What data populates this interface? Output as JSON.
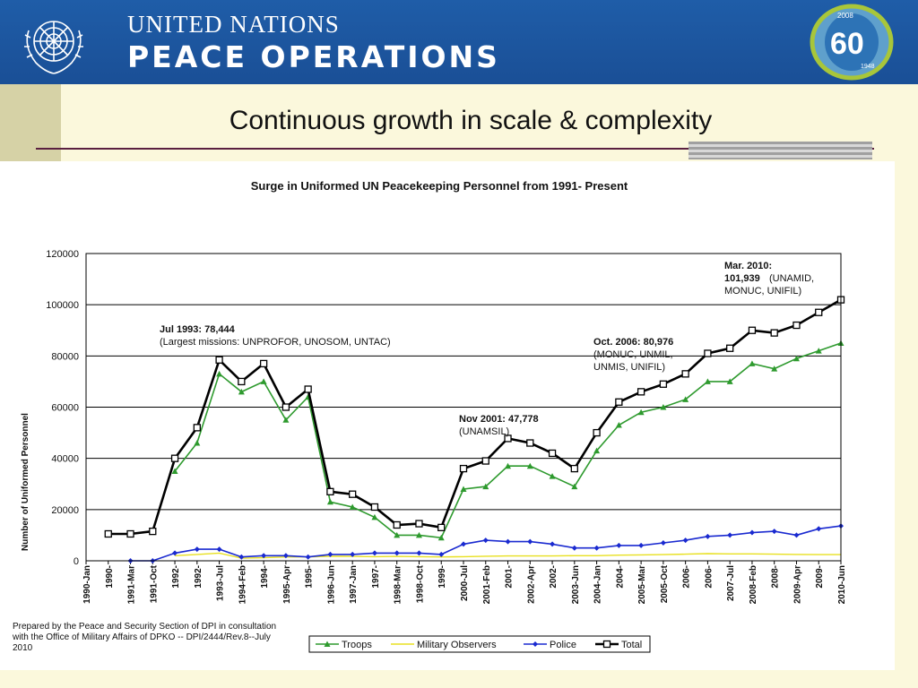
{
  "header": {
    "org_line1": "UNITED NATIONS",
    "org_line2": "PEACE OPERATIONS",
    "badge": {
      "year_top": "2008",
      "number": "60",
      "year_bottom": "1948"
    }
  },
  "slide_title": "Continuous growth in scale & complexity",
  "chart_data": {
    "type": "line",
    "title": "Surge in Uniformed UN Peacekeeping Personnel from 1991- Present",
    "ylabel": "Number of Uniformed Personnel",
    "xlabel": "",
    "ylim": [
      0,
      120000
    ],
    "yticks": [
      "0",
      "20000",
      "40000",
      "60000",
      "80000",
      "100000",
      "120000"
    ],
    "grid": "horizontal",
    "legend_position": "bottom",
    "categories": [
      "1990-Jan",
      "1990-",
      "1991-Mar",
      "1991-Oct",
      "1992-",
      "1992-",
      "1993-Jul",
      "1994-Feb",
      "1994-",
      "1995-Apr",
      "1995-",
      "1996-Jun",
      "1997-Jan",
      "1997-",
      "1998-Mar",
      "1998-Oct",
      "1999-",
      "2000-Jul",
      "2001-Feb",
      "2001-",
      "2002-Apr",
      "2002-",
      "2003-Jun",
      "2004-Jan",
      "2004-",
      "2005-Mar",
      "2005-Oct",
      "2006-",
      "2006-",
      "2007-Jul",
      "2008-Feb",
      "2008-",
      "2009-Apr",
      "2009-",
      "2010-Jun"
    ],
    "series": [
      {
        "name": "Troops",
        "color": "#2e9a2e",
        "marker": "triangle",
        "values": [
          null,
          null,
          null,
          null,
          35000,
          46000,
          73000,
          66000,
          70000,
          55000,
          64000,
          23000,
          21000,
          17000,
          10000,
          10000,
          9000,
          28000,
          29000,
          37000,
          37000,
          33000,
          29000,
          43000,
          53000,
          58000,
          60000,
          63000,
          70000,
          70000,
          77000,
          75000,
          79000,
          82000,
          85000
        ]
      },
      {
        "name": "Military Observers",
        "color": "#e8e020",
        "marker": "none",
        "values": [
          null,
          null,
          null,
          null,
          2000,
          2500,
          3000,
          1000,
          1200,
          1500,
          1500,
          1800,
          1700,
          1600,
          1700,
          1600,
          1500,
          1600,
          1800,
          1900,
          1900,
          1900,
          2000,
          2000,
          2200,
          2300,
          2400,
          2600,
          2800,
          2700,
          2700,
          2600,
          2500,
          2400,
          2400
        ]
      },
      {
        "name": "Police",
        "color": "#1a2ad0",
        "marker": "diamond",
        "values": [
          null,
          null,
          0,
          0,
          3000,
          4500,
          4500,
          1500,
          2000,
          2000,
          1500,
          2500,
          2500,
          3000,
          3000,
          3000,
          2500,
          6500,
          8000,
          7500,
          7500,
          6500,
          5000,
          5000,
          6000,
          6000,
          7000,
          8000,
          9500,
          10000,
          11000,
          11500,
          10000,
          12500,
          13600
        ]
      },
      {
        "name": "Total",
        "color": "#000000",
        "marker": "square",
        "values": [
          null,
          10500,
          10500,
          11500,
          40000,
          52000,
          78444,
          70000,
          77000,
          60000,
          67000,
          27000,
          26000,
          21000,
          14000,
          14500,
          13000,
          36000,
          39000,
          47778,
          46000,
          42000,
          36000,
          50000,
          62000,
          66000,
          69000,
          73000,
          81000,
          83000,
          90000,
          89000,
          92000,
          97000,
          101939
        ]
      }
    ],
    "annotations": [
      {
        "bold": "Jul 1993: 78,444",
        "text": "(Largest missions: UNPROFOR, UNOSOM, UNTAC)"
      },
      {
        "bold": "Nov 2001: 47,778",
        "text": "(UNAMSIL)"
      },
      {
        "bold": "Oct. 2006: 80,976",
        "text": "(MONUC, UNMIL,",
        "text2": "UNMIS, UNIFIL)"
      },
      {
        "bold": "Mar. 2010:",
        "bold2": "101,939",
        "text": "(UNAMID,",
        "text2": "MONUC, UNIFIL)"
      }
    ],
    "source_note": "Prepared by the Peace and Security Section of DPI in consultation with the Office of Military Affairs of DPKO -- DPI/2444/Rev.8--July 2010"
  }
}
